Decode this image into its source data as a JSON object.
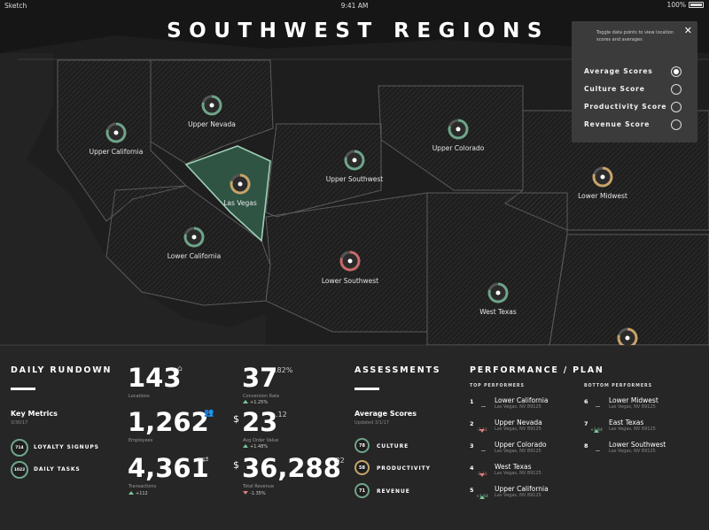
{
  "status_bar": {
    "carrier": "Sketch",
    "time": "9:41 AM",
    "battery": "100%"
  },
  "title": "SOUTHWEST REGIONS",
  "regions": [
    {
      "name": "Upper California",
      "score_color": "#6fa58a"
    },
    {
      "name": "Upper Nevada",
      "score_color": "#6fa58a"
    },
    {
      "name": "Las Vegas",
      "score_color": "#c8a46a"
    },
    {
      "name": "Upper Southwest",
      "score_color": "#6fa58a"
    },
    {
      "name": "Upper Colorado",
      "score_color": "#6fa58a"
    },
    {
      "name": "Lower Midwest",
      "score_color": "#c8a46a"
    },
    {
      "name": "Lower California",
      "score_color": "#6fa58a"
    },
    {
      "name": "Lower Southwest",
      "score_color": "#c86a6a"
    },
    {
      "name": "West Texas",
      "score_color": "#6fa58a"
    },
    {
      "name": "East Texas",
      "score_color": "#c8a46a"
    }
  ],
  "toggle_panel": {
    "close_icon": "✕",
    "description": "Toggle data points to view location scores and averages",
    "options": [
      {
        "label": "Average Scores",
        "selected": true
      },
      {
        "label": "Culture Score",
        "selected": false
      },
      {
        "label": "Productivity Score",
        "selected": false
      },
      {
        "label": "Revenue Score",
        "selected": false
      }
    ]
  },
  "daily_rundown": {
    "heading": "DAILY RUNDOWN",
    "key_metrics_title": "Key Metrics",
    "key_metrics_date": "3/30/17",
    "key_metrics": [
      {
        "value": "714",
        "label": "LOYALTY SIGNUPS"
      },
      {
        "value": "1022",
        "label": "DAILY TASKS"
      }
    ],
    "stats": [
      {
        "value": "143",
        "caption": "Locations",
        "icon": "home-icon"
      },
      {
        "value": "1,262",
        "caption": "Employees",
        "icon": "people-icon"
      },
      {
        "value": "4,361",
        "caption": "Transactions",
        "icon": "shuffle-icon",
        "delta": "+112"
      }
    ],
    "money": [
      {
        "prefix": "",
        "value": "37",
        "sup": ".82%",
        "caption": "Conversion Rate",
        "delta": "+1.25%",
        "dir": "up"
      },
      {
        "prefix": "$",
        "value": "23",
        "sup": ".12",
        "caption": "Avg Order Value",
        "delta": "+1.48%",
        "dir": "up"
      },
      {
        "prefix": "$",
        "value": "36,288",
        "sup": ".32",
        "caption": "Total Revenue",
        "delta": "-1.35%",
        "dir": "down"
      }
    ]
  },
  "assessments": {
    "heading": "ASSESSMENTS",
    "subtitle": "Average Scores",
    "updated": "Updated 3/1/17",
    "items": [
      {
        "value": "78",
        "label": "CULTURE",
        "color": "#6fa58a"
      },
      {
        "value": "58",
        "label": "PRODUCTIVITY",
        "color": "#c8a46a"
      },
      {
        "value": "71",
        "label": "REVENUE",
        "color": "#6fa58a"
      }
    ]
  },
  "performance": {
    "heading": "PERFORMANCE / PLAN",
    "top_title": "TOP PERFORMERS",
    "bottom_title": "BOTTOM PERFORMERS",
    "top": [
      {
        "rank": "1",
        "name": "Lower California",
        "addr": "Las Vegas, NV 89125",
        "change": "",
        "dir": "none"
      },
      {
        "rank": "2",
        "name": "Upper Nevada",
        "addr": "Las Vegas, NV 89125",
        "change": "-2.11",
        "dir": "down"
      },
      {
        "rank": "3",
        "name": "Upper Colorado",
        "addr": "Las Vegas, NV 89125",
        "change": "",
        "dir": "none"
      },
      {
        "rank": "4",
        "name": "West Texas",
        "addr": "Las Vegas, NV 89125",
        "change": "-2.11",
        "dir": "down"
      },
      {
        "rank": "5",
        "name": "Upper California",
        "addr": "Las Vegas, NV 89125",
        "change": "+1.64",
        "dir": "up"
      }
    ],
    "bottom": [
      {
        "rank": "6",
        "name": "Lower Midwest",
        "addr": "Las Vegas, NV 89125",
        "change": "",
        "dir": "none"
      },
      {
        "rank": "7",
        "name": "East Texas",
        "addr": "Las Vegas, NV 89125",
        "change": "+1.64",
        "dir": "up"
      },
      {
        "rank": "8",
        "name": "Lower Southwest",
        "addr": "Las Vegas, NV 89125",
        "change": "",
        "dir": "none"
      }
    ]
  }
}
